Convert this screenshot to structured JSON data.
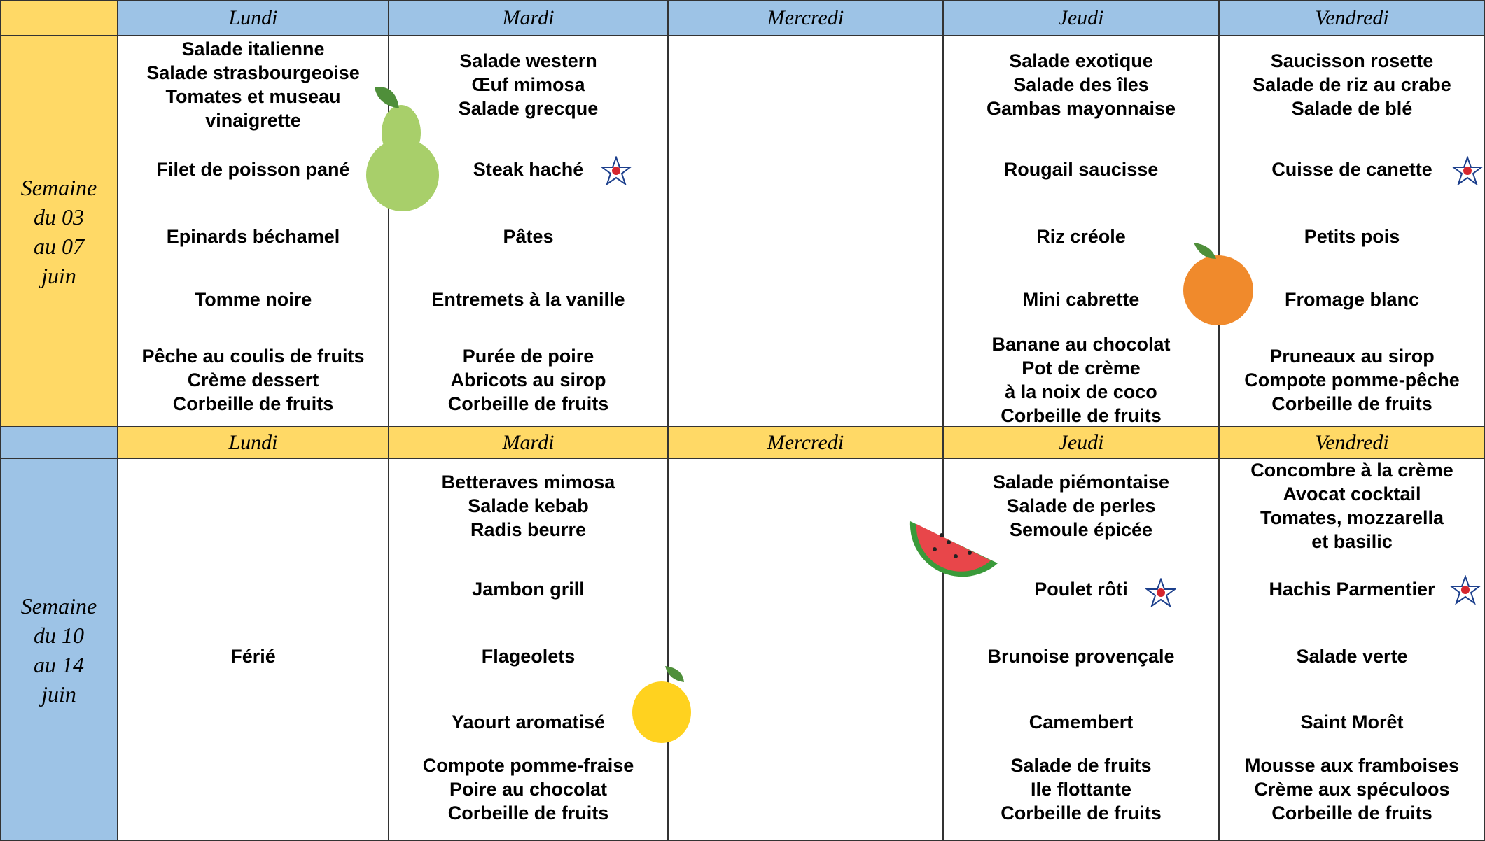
{
  "weeks": [
    {
      "label": [
        "Semaine",
        "du 03",
        "au 07",
        "juin"
      ],
      "days": [
        {
          "name": "Lundi",
          "groups": [
            [
              "Salade italienne",
              "Salade strasbourgeoise",
              "Tomates et museau",
              "vinaigrette"
            ],
            [
              "Filet de poisson pané"
            ],
            [
              "Epinards béchamel"
            ],
            [
              "Tomme noire"
            ],
            [
              "Pêche au coulis de fruits",
              "Crème dessert",
              "Corbeille de fruits"
            ]
          ]
        },
        {
          "name": "Mardi",
          "groups": [
            [
              "Salade western",
              "Œuf mimosa",
              "Salade grecque"
            ],
            [
              "Steak haché"
            ],
            [
              "Pâtes"
            ],
            [
              "Entremets à la vanille"
            ],
            [
              "Purée de poire",
              "Abricots au sirop",
              "Corbeille de fruits"
            ]
          ]
        },
        {
          "name": "Mercredi",
          "groups": []
        },
        {
          "name": "Jeudi",
          "groups": [
            [
              "Salade exotique",
              "Salade des îles",
              "Gambas mayonnaise"
            ],
            [
              "Rougail saucisse"
            ],
            [
              "Riz créole"
            ],
            [
              "Mini cabrette"
            ],
            [
              "Banane au chocolat",
              "Pot de crème",
              "à la noix de coco",
              "Corbeille de fruits"
            ]
          ]
        },
        {
          "name": "Vendredi",
          "groups": [
            [
              "Saucisson rosette",
              "Salade de riz au crabe",
              "Salade de blé"
            ],
            [
              "Cuisse de canette"
            ],
            [
              "Petits pois"
            ],
            [
              "Fromage blanc"
            ],
            [
              "Pruneaux au sirop",
              "Compote pomme-pêche",
              "Corbeille de fruits"
            ]
          ]
        }
      ]
    },
    {
      "label": [
        "Semaine",
        "du 10",
        "au 14",
        "juin"
      ],
      "days": [
        {
          "name": "Lundi",
          "groups": [
            [
              "Férié"
            ]
          ]
        },
        {
          "name": "Mardi",
          "groups": [
            [
              "Betteraves mimosa",
              "Salade kebab",
              "Radis beurre"
            ],
            [
              "Jambon grill"
            ],
            [
              "Flageolets"
            ],
            [
              "Yaourt aromatisé"
            ],
            [
              "Compote pomme-fraise",
              "Poire au chocolat",
              "Corbeille de fruits"
            ]
          ]
        },
        {
          "name": "Mercredi",
          "groups": []
        },
        {
          "name": "Jeudi",
          "groups": [
            [
              "Salade piémontaise",
              "Salade de perles",
              "Semoule épicée"
            ],
            [
              "Poulet rôti"
            ],
            [
              "Brunoise provençale"
            ],
            [
              "Camembert"
            ],
            [
              "Salade de fruits",
              "Ile flottante",
              "Corbeille de fruits"
            ]
          ]
        },
        {
          "name": "Vendredi",
          "groups": [
            [
              "Concombre à la crème",
              "Avocat cocktail",
              "Tomates, mozzarella",
              "et basilic"
            ],
            [
              "Hachis Parmentier"
            ],
            [
              "Salade verte"
            ],
            [
              "Saint Morêt"
            ],
            [
              "Mousse aux framboises",
              "Crème aux spéculoos",
              "Corbeille de fruits"
            ]
          ]
        }
      ]
    }
  ]
}
